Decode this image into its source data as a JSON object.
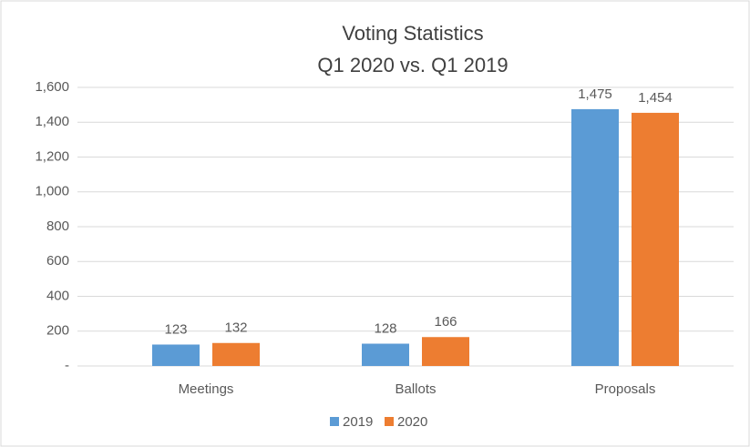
{
  "chart_data": {
    "type": "bar",
    "title": "Voting Statistics",
    "subtitle": "Q1 2020 vs. Q1 2019",
    "categories": [
      "Meetings",
      "Ballots",
      "Proposals"
    ],
    "series": [
      {
        "name": "2019",
        "color": "#5b9bd5",
        "values": [
          123,
          128,
          1475
        ],
        "value_labels": [
          "123",
          "128",
          "1,475"
        ]
      },
      {
        "name": "2020",
        "color": "#ed7d31",
        "values": [
          132,
          166,
          1454
        ],
        "value_labels": [
          "132",
          "166",
          "1,454"
        ]
      }
    ],
    "ylim": [
      0,
      1600
    ],
    "yticks": [
      {
        "value": 0,
        "label": "-"
      },
      200,
      400,
      600,
      800,
      {
        "value": 1000,
        "label": "1,000"
      },
      {
        "value": 1200,
        "label": "1,200"
      },
      {
        "value": 1400,
        "label": "1,400"
      },
      {
        "value": 1600,
        "label": "1,600"
      }
    ],
    "grid": true,
    "legend": "bottom"
  }
}
